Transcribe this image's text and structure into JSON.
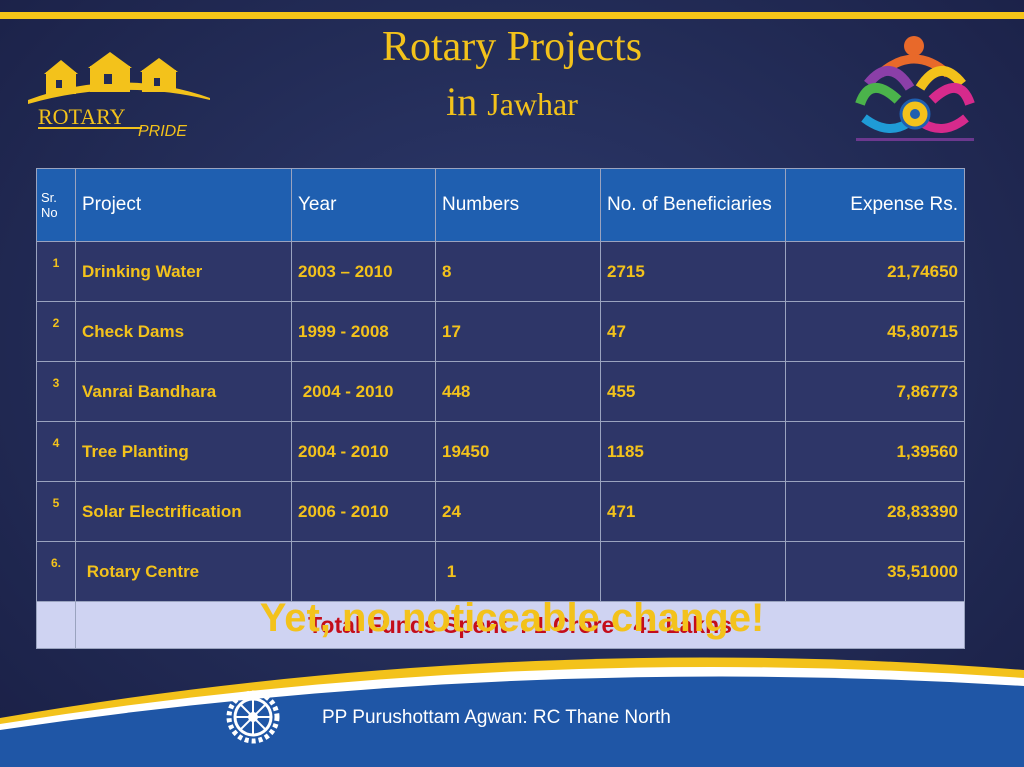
{
  "title": {
    "line1": "Rotary Projects",
    "line2_in": "in",
    "line2_place": "Jawhar"
  },
  "logo_left": {
    "text1": "ROTARY",
    "text2": "PRIDE",
    "icon": "village-houses-icon"
  },
  "logo_right": {
    "icon": "rotary-wheel-figures-icon"
  },
  "table": {
    "headers": {
      "sr": "Sr. No",
      "project": "Project",
      "year": "Year",
      "numbers": "Numbers",
      "beneficiaries": "No. of Beneficiaries",
      "expense": "Expense  Rs."
    },
    "rows": [
      {
        "sr": "1",
        "project": "Drinking Water",
        "year": "2003 – 2010",
        "numbers": "8",
        "beneficiaries": "2715",
        "expense": "21,74650"
      },
      {
        "sr": "2",
        "project": "Check Dams",
        "year": "1999 - 2008",
        "numbers": "17",
        "beneficiaries": "47",
        "expense": "45,80715"
      },
      {
        "sr": "3",
        "project": "Vanrai Bandhara",
        "year": " 2004 - 2010",
        "numbers": "448",
        "beneficiaries": "455",
        "expense": "7,86773"
      },
      {
        "sr": "4",
        "project": "Tree Planting",
        "year": "2004 - 2010",
        "numbers": "19450",
        "beneficiaries": "1185",
        "expense": "1,39560"
      },
      {
        "sr": "5",
        "project": "Solar Electrification",
        "year": "2006 - 2010",
        "numbers": "24",
        "beneficiaries": "471",
        "expense": "28,83390"
      },
      {
        "sr": "6.",
        "project": " Rotary Centre",
        "year": "",
        "numbers": " 1",
        "beneficiaries": "",
        "expense": "35,51000"
      }
    ],
    "total": "Total Funds Spent  : 1 Crore   41 Lakhs"
  },
  "tagline": "Yet, no noticeable change!",
  "footer": {
    "text": "PP Purushottam Agwan: RC Thane North",
    "icon": "rotary-wheel-icon"
  },
  "colors": {
    "accent": "#f3c21b",
    "header_blue": "#1f5fb0",
    "total_red": "#c40d1b",
    "background": "#232c57"
  }
}
